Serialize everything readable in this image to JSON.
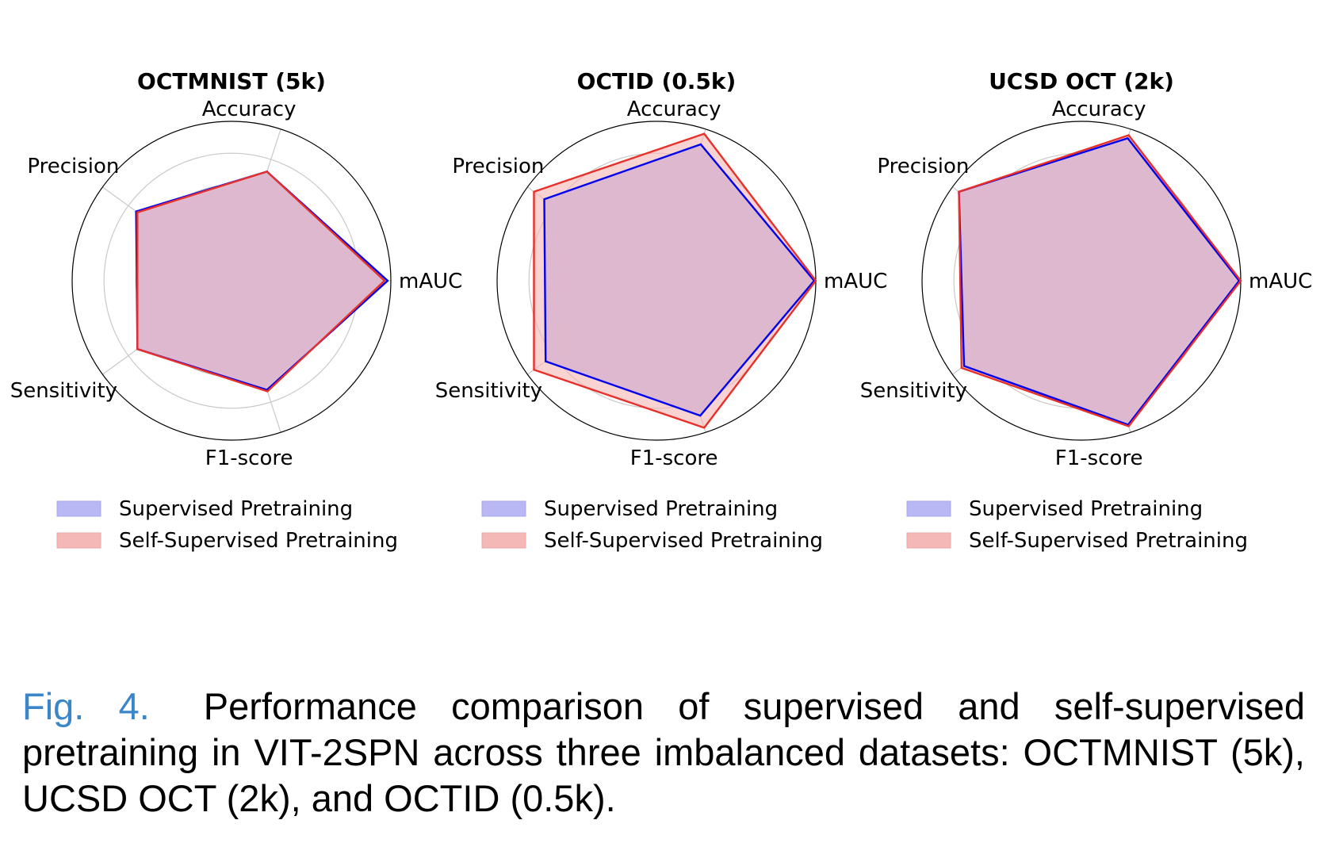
{
  "colors": {
    "supervised_line": "#0000ee",
    "supervised_fill": "#b8b8f4",
    "self_supervised_line": "#e8302a",
    "self_supervised_fill": "#f4b8b6",
    "overlap_fill": "#c490be",
    "grid": "#c8c8c8",
    "caption_label": "#3a86c8"
  },
  "chart_data": [
    {
      "type": "radar",
      "title": "OCTMNIST (5k)",
      "axes": [
        "mAUC",
        "Accuracy",
        "Precision",
        "Sensitivity",
        "F1-score"
      ],
      "rlim": [
        0,
        1
      ],
      "grid": true,
      "legend_placement": "bottom",
      "series": [
        {
          "name": "Supervised Pretraining",
          "values": [
            0.98,
            0.72,
            0.74,
            0.73,
            0.72
          ]
        },
        {
          "name": "Self-Supervised Pretraining",
          "values": [
            0.96,
            0.72,
            0.73,
            0.73,
            0.73
          ]
        }
      ]
    },
    {
      "type": "radar",
      "title": "OCTID (0.5k)",
      "axes": [
        "mAUC",
        "Accuracy",
        "Precision",
        "Sensitivity",
        "F1-score"
      ],
      "rlim": [
        0,
        1
      ],
      "grid": true,
      "legend_placement": "bottom",
      "series": [
        {
          "name": "Supervised Pretraining",
          "values": [
            0.99,
            0.9,
            0.87,
            0.86,
            0.89
          ]
        },
        {
          "name": "Self-Supervised Pretraining",
          "values": [
            1.0,
            0.97,
            0.95,
            0.95,
            0.97
          ]
        }
      ]
    },
    {
      "type": "radar",
      "title": "UCSD OCT (2k)",
      "axes": [
        "mAUC",
        "Accuracy",
        "Precision",
        "Sensitivity",
        "F1-score"
      ],
      "rlim": [
        0,
        1
      ],
      "grid": true,
      "legend_placement": "bottom",
      "series": [
        {
          "name": "Supervised Pretraining",
          "values": [
            0.99,
            0.94,
            0.95,
            0.91,
            0.95
          ]
        },
        {
          "name": "Self-Supervised Pretraining",
          "values": [
            1.0,
            0.96,
            0.95,
            0.93,
            0.96
          ]
        }
      ]
    }
  ],
  "caption": {
    "label": "Fig. 4.",
    "text": "Performance comparison of supervised and self-supervised pretraining in VIT-2SPN across three imbalanced datasets: OCTMNIST (5k), UCSD OCT (2k), and OCTID (0.5k)."
  }
}
